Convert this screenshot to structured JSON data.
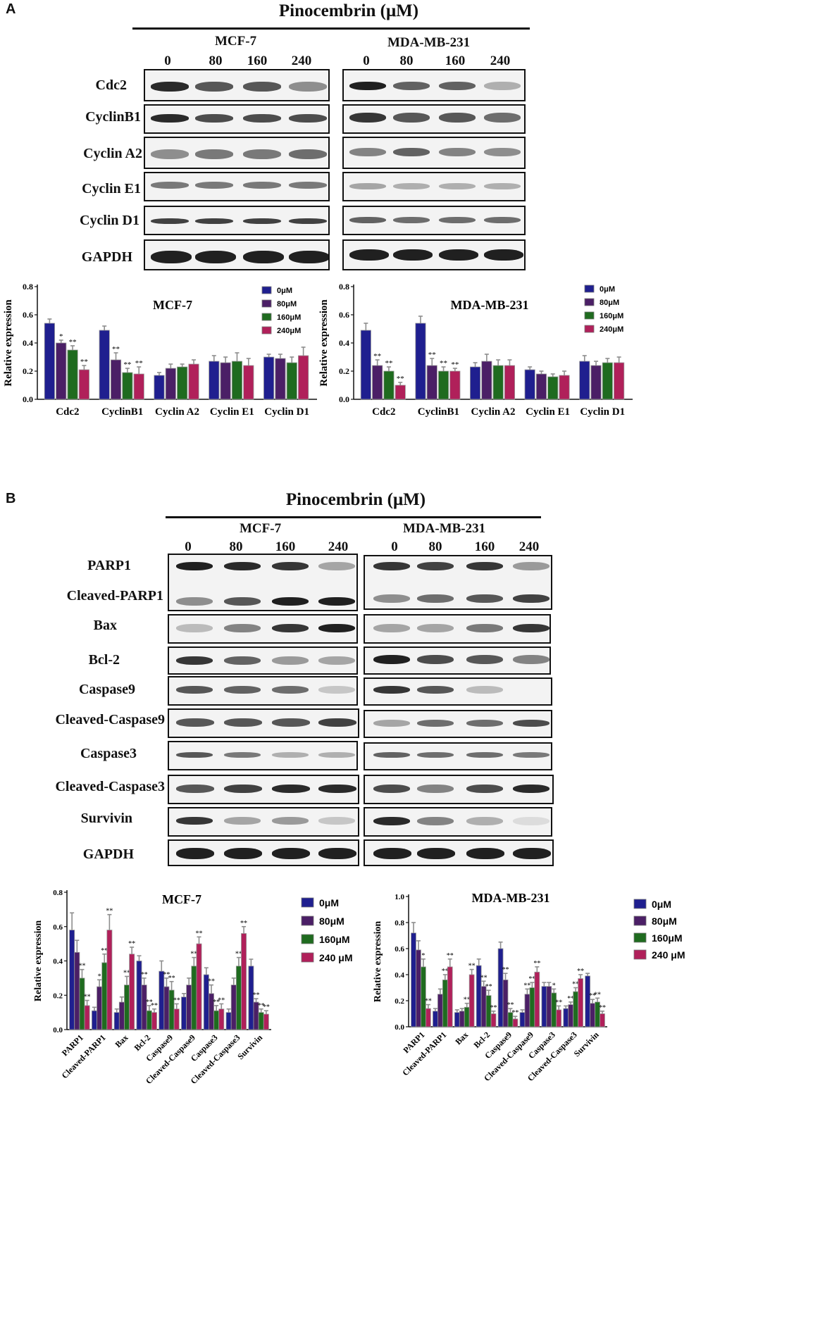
{
  "panel_A": {
    "letter": "A",
    "title": "Pinocembrin (μM)",
    "cell_lines": [
      "MCF-7",
      "MDA-MB-231"
    ],
    "doses": [
      "0",
      "80",
      "160",
      "240"
    ],
    "proteins": [
      "Cdc2",
      "CyclinB1",
      "Cyclin A2",
      "Cyclin E1",
      "Cyclin D1",
      "GAPDH"
    ]
  },
  "panel_B": {
    "letter": "B",
    "title": "Pinocembrin (μM)",
    "cell_lines": [
      "MCF-7",
      "MDA-MB-231"
    ],
    "doses": [
      "0",
      "80",
      "160",
      "240"
    ],
    "proteins": [
      "PARP1",
      "Cleaved-PARP1",
      "Bax",
      "Bcl-2",
      "Caspase9",
      "Cleaved-Caspase9",
      "Caspase3",
      "Cleaved-Caspase3",
      "Survivin",
      "GAPDH"
    ]
  },
  "colors": {
    "s0": "#1f1f8f",
    "s80": "#4b1f66",
    "s160": "#1f6b1f",
    "s240": "#b0205a",
    "errbar": "#8e8e8e"
  },
  "chart_data": [
    {
      "type": "bar",
      "title": "MCF-7",
      "ylabel": "Relative expression",
      "ylim": [
        0,
        0.8
      ],
      "yticks": [
        "0.0",
        "0.2",
        "0.4",
        "0.6",
        "0.8"
      ],
      "categories": [
        "Cdc2",
        "CyclinB1",
        "Cyclin A2",
        "Cyclin E1",
        "Cyclin D1"
      ],
      "series": [
        {
          "name": "0μM",
          "values": [
            0.54,
            0.49,
            0.17,
            0.27,
            0.3
          ],
          "err": [
            0.03,
            0.03,
            0.02,
            0.04,
            0.02
          ]
        },
        {
          "name": "80μM",
          "values": [
            0.4,
            0.28,
            0.22,
            0.26,
            0.29
          ],
          "err": [
            0.02,
            0.05,
            0.03,
            0.04,
            0.03
          ]
        },
        {
          "name": "160μM",
          "values": [
            0.35,
            0.19,
            0.23,
            0.27,
            0.26
          ],
          "err": [
            0.03,
            0.03,
            0.02,
            0.06,
            0.04
          ]
        },
        {
          "name": "240μM",
          "values": [
            0.21,
            0.18,
            0.25,
            0.24,
            0.31
          ],
          "err": [
            0.03,
            0.05,
            0.03,
            0.05,
            0.06
          ]
        }
      ],
      "annotations": [
        [
          "*",
          "**",
          "",
          "",
          ""
        ],
        [
          "**",
          "**",
          "",
          "",
          ""
        ],
        [
          "**",
          "**",
          "",
          "",
          ""
        ]
      ],
      "legend": "top-right"
    },
    {
      "type": "bar",
      "title": "MDA-MB-231",
      "ylabel": "Relative expression",
      "ylim": [
        0,
        0.8
      ],
      "yticks": [
        "0.0",
        "0.2",
        "0.4",
        "0.6",
        "0.8"
      ],
      "categories": [
        "Cdc2",
        "CyclinB1",
        "Cyclin A2",
        "Cyclin E1",
        "Cyclin D1"
      ],
      "series": [
        {
          "name": "0μM",
          "values": [
            0.49,
            0.54,
            0.23,
            0.21,
            0.27
          ],
          "err": [
            0.05,
            0.05,
            0.03,
            0.02,
            0.04
          ]
        },
        {
          "name": "80μM",
          "values": [
            0.24,
            0.24,
            0.27,
            0.18,
            0.24
          ],
          "err": [
            0.04,
            0.05,
            0.05,
            0.02,
            0.03
          ]
        },
        {
          "name": "160μM",
          "values": [
            0.2,
            0.2,
            0.24,
            0.16,
            0.26
          ],
          "err": [
            0.03,
            0.03,
            0.04,
            0.02,
            0.03
          ]
        },
        {
          "name": "240μM",
          "values": [
            0.1,
            0.2,
            0.24,
            0.17,
            0.26
          ],
          "err": [
            0.02,
            0.02,
            0.04,
            0.03,
            0.04
          ]
        }
      ],
      "annotations": [
        [
          "**",
          "**",
          "",
          "",
          ""
        ],
        [
          "**",
          "**",
          "",
          "",
          ""
        ],
        [
          "**",
          "**",
          "",
          "",
          ""
        ]
      ],
      "legend": "top-right"
    },
    {
      "type": "bar",
      "title": "MCF-7",
      "ylabel": "Relative expression",
      "ylim": [
        0,
        0.8
      ],
      "yticks": [
        "0.0",
        "0.2",
        "0.4",
        "0.6",
        "0.8"
      ],
      "categories": [
        "PARP1",
        "Cleaved-PARP1",
        "Bax",
        "Bcl-2",
        "Caspase9",
        "Cleaved-Caspase9",
        "Caspase3",
        "Cleaved-Caspase3",
        "Survivin"
      ],
      "series": [
        {
          "name": "0μM",
          "values": [
            0.58,
            0.11,
            0.1,
            0.4,
            0.34,
            0.19,
            0.32,
            0.1,
            0.37
          ],
          "err": [
            0.1,
            0.02,
            0.02,
            0.03,
            0.06,
            0.02,
            0.04,
            0.02,
            0.04
          ]
        },
        {
          "name": "80μM",
          "values": [
            0.45,
            0.25,
            0.16,
            0.26,
            0.25,
            0.26,
            0.21,
            0.26,
            0.16
          ],
          "err": [
            0.07,
            0.04,
            0.03,
            0.04,
            0.05,
            0.04,
            0.05,
            0.04,
            0.02
          ]
        },
        {
          "name": "160μM",
          "values": [
            0.3,
            0.39,
            0.26,
            0.11,
            0.23,
            0.37,
            0.11,
            0.37,
            0.1
          ],
          "err": [
            0.05,
            0.05,
            0.05,
            0.03,
            0.05,
            0.05,
            0.03,
            0.05,
            0.02
          ]
        },
        {
          "name": "240 μM",
          "values": [
            0.14,
            0.58,
            0.44,
            0.1,
            0.12,
            0.5,
            0.12,
            0.56,
            0.09
          ],
          "err": [
            0.03,
            0.09,
            0.04,
            0.02,
            0.03,
            0.04,
            0.03,
            0.04,
            0.02
          ]
        }
      ],
      "annotations": [
        [
          "",
          "*",
          "",
          "**",
          "**",
          "",
          "**",
          "",
          "**"
        ],
        [
          "**",
          "**",
          "**",
          "**",
          "**",
          "**",
          "**",
          "**",
          "**"
        ],
        [
          "**",
          "**",
          "**",
          "**",
          "**",
          "**",
          "**",
          "**",
          "**"
        ]
      ],
      "legend": "top-right"
    },
    {
      "type": "bar",
      "title": "MDA-MB-231",
      "ylabel": "Relative expression",
      "ylim": [
        0,
        1.0
      ],
      "yticks": [
        "0.0",
        "0.2",
        "0.4",
        "0.6",
        "0.8",
        "1.0"
      ],
      "categories": [
        "PARP1",
        "Cleaved-PARP1",
        "Bax",
        "Bcl-2",
        "Caspase9",
        "Cleaved-Caspase9",
        "Caspase3",
        "Cleaved-Caspase3",
        "Survivin"
      ],
      "series": [
        {
          "name": "0μM",
          "values": [
            0.72,
            0.12,
            0.11,
            0.47,
            0.6,
            0.11,
            0.31,
            0.14,
            0.39
          ],
          "err": [
            0.08,
            0.02,
            0.02,
            0.05,
            0.05,
            0.02,
            0.03,
            0.02,
            0.02
          ]
        },
        {
          "name": "80μM",
          "values": [
            0.59,
            0.25,
            0.12,
            0.31,
            0.36,
            0.25,
            0.31,
            0.17,
            0.18
          ],
          "err": [
            0.07,
            0.04,
            0.02,
            0.04,
            0.05,
            0.04,
            0.03,
            0.02,
            0.03
          ]
        },
        {
          "name": "160μM",
          "values": [
            0.46,
            0.36,
            0.15,
            0.24,
            0.11,
            0.3,
            0.26,
            0.27,
            0.19
          ],
          "err": [
            0.06,
            0.04,
            0.03,
            0.04,
            0.03,
            0.04,
            0.03,
            0.03,
            0.03
          ]
        },
        {
          "name": "240 μM",
          "values": [
            0.14,
            0.46,
            0.4,
            0.1,
            0.06,
            0.42,
            0.13,
            0.37,
            0.1
          ],
          "err": [
            0.03,
            0.06,
            0.04,
            0.02,
            0.02,
            0.04,
            0.03,
            0.03,
            0.02
          ]
        }
      ],
      "annotations": [
        [
          "",
          "",
          "",
          "**",
          "**",
          "**",
          "",
          "**",
          "**"
        ],
        [
          "*",
          "**",
          "**",
          "**",
          "**",
          "**",
          "*",
          "**",
          "**"
        ],
        [
          "**",
          "**",
          "**",
          "**",
          "**",
          "**",
          "**",
          "**",
          "**"
        ]
      ],
      "legend": "top-right"
    }
  ]
}
